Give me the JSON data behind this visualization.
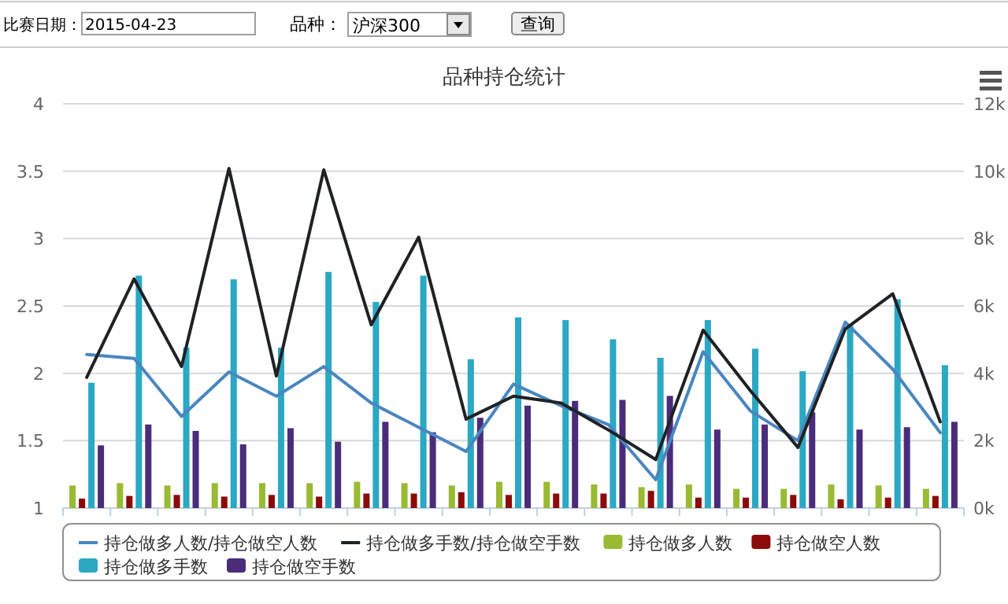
{
  "chart_data": {
    "type": "bar",
    "title": "品种持仓统计",
    "annotations": [
      "比赛日期：",
      "2015-04-23",
      "品种：",
      "沪深300",
      "查询"
    ],
    "categories": [
      null,
      null,
      null,
      null,
      null,
      null,
      null,
      null,
      null,
      null,
      null,
      null,
      null,
      null,
      null,
      null,
      null,
      null,
      null
    ],
    "series": [
      {
        "type": "line",
        "axis": "y",
        "name": "持仓做多人数/持仓做空人数",
        "color": "#4a86c0",
        "values": [
          2.14,
          2.11,
          1.68,
          2.01,
          1.83,
          2.05,
          1.78,
          1.6,
          1.42,
          1.92,
          1.76,
          1.62,
          1.21,
          2.16,
          1.72,
          1.5,
          2.38,
          2.03,
          1.56
        ]
      },
      {
        "type": "line",
        "axis": "y",
        "name": "持仓做多手数/持仓做空手数",
        "color": "#1f2224",
        "values": [
          1.97,
          2.7,
          2.05,
          3.52,
          1.98,
          3.51,
          2.36,
          3.01,
          1.66,
          1.83,
          1.78,
          1.58,
          1.36,
          2.32,
          1.87,
          1.45,
          2.33,
          2.59,
          1.64
        ]
      },
      {
        "axis": "y2",
        "name": "持仓做多人数",
        "color": "#99bb33",
        "values": [
          670,
          740,
          670,
          740,
          740,
          740,
          780,
          740,
          670,
          780,
          780,
          700,
          620,
          700,
          570,
          570,
          700,
          670,
          570
        ]
      },
      {
        "axis": "y2",
        "name": "持仓做空人数",
        "color": "#8b0a0a",
        "values": [
          280,
          360,
          390,
          340,
          390,
          340,
          430,
          430,
          470,
          390,
          430,
          430,
          510,
          310,
          310,
          390,
          260,
          310,
          360
        ]
      },
      {
        "axis": "y2",
        "name": "持仓做多手数",
        "color": "#2aa8c4",
        "values": [
          3720,
          6900,
          4760,
          6790,
          4760,
          7010,
          6120,
          6900,
          4420,
          5660,
          5580,
          5010,
          4460,
          5580,
          4730,
          4060,
          5430,
          6200,
          4240
        ]
      },
      {
        "axis": "y2",
        "name": "持仓做空手数",
        "color": "#4a2c7a",
        "values": [
          1860,
          2480,
          2290,
          1890,
          2370,
          1970,
          2560,
          2250,
          2680,
          3040,
          3180,
          3210,
          3330,
          2330,
          2480,
          2840,
          2330,
          2400,
          2560
        ]
      }
    ],
    "ylim": [
      1,
      4
    ],
    "yticks": [
      1,
      1.5,
      2,
      2.5,
      3,
      3.5,
      4
    ],
    "y2lim": [
      0,
      12000
    ],
    "y2ticks": [
      {
        "value": 0,
        "label": "0k"
      },
      {
        "value": 2000,
        "label": "2k"
      },
      {
        "value": 4000,
        "label": "4k"
      },
      {
        "value": 6000,
        "label": "6k"
      },
      {
        "value": 8000,
        "label": "8k"
      },
      {
        "value": 10000,
        "label": "10k"
      },
      {
        "value": 12000,
        "label": "12k"
      }
    ],
    "grid": "y",
    "legend": "bottom"
  }
}
